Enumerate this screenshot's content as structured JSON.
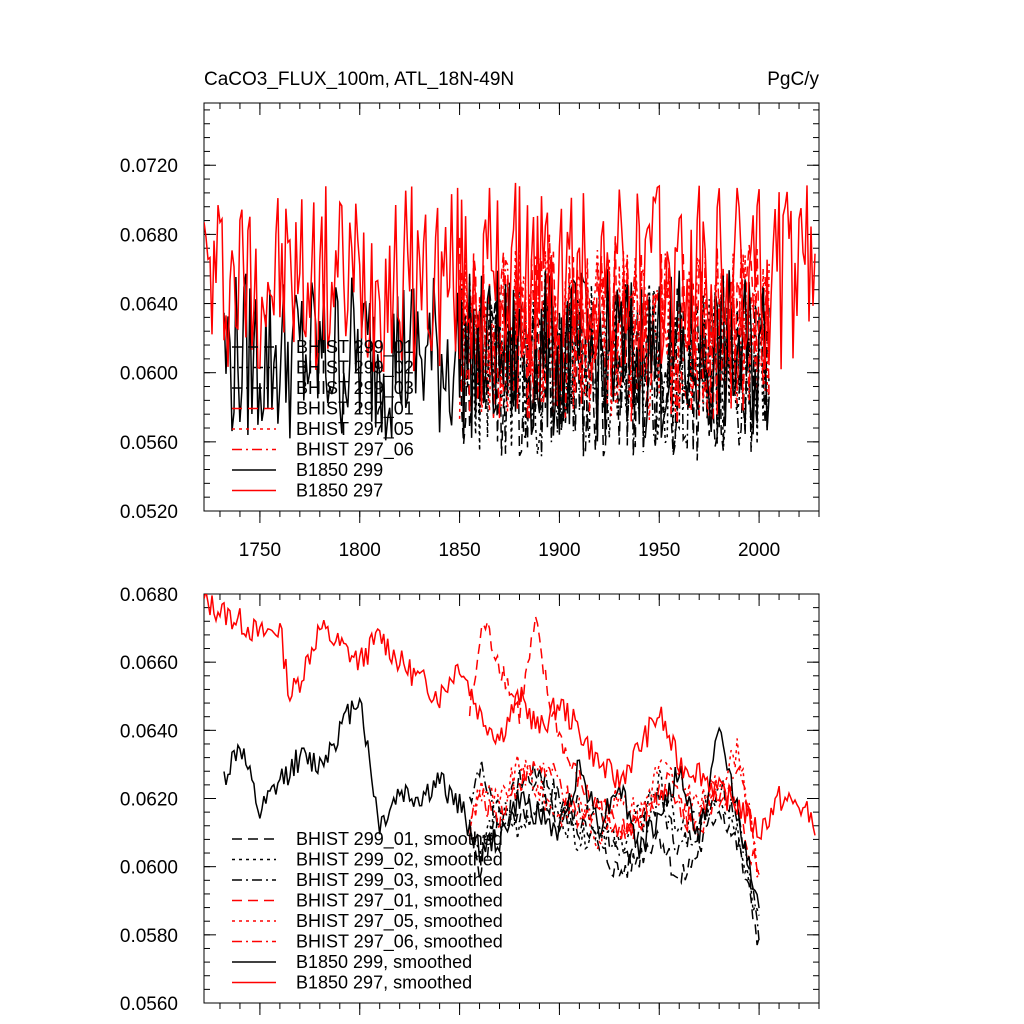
{
  "figure": {
    "title": "CaCO3_FLUX_100m, ATL_18N-49N",
    "units": "PgC/y"
  },
  "colors": {
    "black": "#000000",
    "red": "#ff0000"
  },
  "chart_data": [
    {
      "type": "line",
      "panel": "top",
      "title": "CaCO3_FLUX_100m, ATL_18N-49N",
      "units_label": "PgC/y",
      "xlim": [
        1722,
        2030
      ],
      "ylim": [
        0.052,
        0.0756
      ],
      "yticks": [
        0.052,
        0.056,
        0.06,
        0.064,
        0.068,
        0.072
      ],
      "ytick_labels": [
        "0.0520",
        "0.0560",
        "0.0600",
        "0.0640",
        "0.0680",
        "0.0720"
      ],
      "xticks": [
        1750,
        1800,
        1850,
        1900,
        1950,
        2000
      ],
      "xtick_labels": [
        "1750",
        "1800",
        "1850",
        "1900",
        "1950",
        "2000"
      ],
      "legend_position": "lower-left",
      "series": [
        {
          "name": "BHIST 299_01",
          "color": "#000000",
          "dash": "long-dash",
          "x_start": 1850,
          "x_end": 2005,
          "base": 0.06,
          "amp": 0.0052,
          "seed": 11
        },
        {
          "name": "BHIST 299_02",
          "color": "#000000",
          "dash": "dot",
          "x_start": 1850,
          "x_end": 2005,
          "base": 0.0602,
          "amp": 0.005,
          "seed": 23
        },
        {
          "name": "BHIST 299_03",
          "color": "#000000",
          "dash": "dash-dot",
          "x_start": 1850,
          "x_end": 2005,
          "base": 0.0601,
          "amp": 0.005,
          "seed": 37
        },
        {
          "name": "BHIST 297_01",
          "color": "#ff0000",
          "dash": "long-dash",
          "x_start": 1850,
          "x_end": 2005,
          "base": 0.0625,
          "amp": 0.0055,
          "seed": 41
        },
        {
          "name": "BHIST 297_05",
          "color": "#ff0000",
          "dash": "dot",
          "x_start": 1850,
          "x_end": 2005,
          "base": 0.0622,
          "amp": 0.005,
          "seed": 53
        },
        {
          "name": "BHIST 297_06",
          "color": "#ff0000",
          "dash": "dash-dot",
          "x_start": 1850,
          "x_end": 2005,
          "base": 0.0623,
          "amp": 0.005,
          "seed": 67
        },
        {
          "name": "B1850 299",
          "color": "#000000",
          "dash": "solid",
          "x_start": 1732,
          "x_end": 2005,
          "base": 0.061,
          "amp": 0.005,
          "seed": 79
        },
        {
          "name": "B1850 297",
          "color": "#ff0000",
          "dash": "solid",
          "x_start": 1722,
          "x_end": 2028,
          "base": 0.0655,
          "amp": 0.0055,
          "seed": 97
        }
      ]
    },
    {
      "type": "line",
      "panel": "bottom",
      "xlim": [
        1722,
        2030
      ],
      "ylim": [
        0.056,
        0.068
      ],
      "yticks": [
        0.056,
        0.058,
        0.06,
        0.062,
        0.064,
        0.066,
        0.068
      ],
      "ytick_labels": [
        "0.0560",
        "0.0580",
        "0.0600",
        "0.0620",
        "0.0640",
        "0.0660",
        "0.0680"
      ],
      "xticks": [
        1750,
        1800,
        1850,
        1900,
        1950,
        2000
      ],
      "legend_position": "lower-left",
      "series": [
        {
          "name": "BHIST 299_01, smoothed",
          "color": "#000000",
          "dash": "long-dash",
          "x": [
            1855,
            1860,
            1870,
            1880,
            1890,
            1900,
            1910,
            1920,
            1930,
            1940,
            1950,
            1960,
            1970,
            1980,
            1990,
            2000
          ],
          "y": [
            0.061,
            0.06,
            0.0615,
            0.0612,
            0.0625,
            0.0612,
            0.0618,
            0.0605,
            0.0598,
            0.0603,
            0.061,
            0.0595,
            0.0605,
            0.0618,
            0.0605,
            0.0578
          ],
          "jitter": 0.0004,
          "seed": 5
        },
        {
          "name": "BHIST 299_02, smoothed",
          "color": "#000000",
          "dash": "dot",
          "x": [
            1855,
            1860,
            1870,
            1880,
            1890,
            1900,
            1910,
            1920,
            1930,
            1940,
            1950,
            1960,
            1970,
            1980,
            1990,
            2000
          ],
          "y": [
            0.0612,
            0.0605,
            0.0618,
            0.061,
            0.062,
            0.0615,
            0.0608,
            0.0612,
            0.0606,
            0.0615,
            0.0625,
            0.061,
            0.0615,
            0.0622,
            0.061,
            0.0582
          ],
          "jitter": 0.0004,
          "seed": 6
        },
        {
          "name": "BHIST 299_03, smoothed",
          "color": "#000000",
          "dash": "dash-dot",
          "x": [
            1855,
            1860,
            1870,
            1880,
            1890,
            1900,
            1910,
            1920,
            1930,
            1940,
            1950,
            1960,
            1970,
            1980,
            1990,
            2000
          ],
          "y": [
            0.062,
            0.063,
            0.0612,
            0.0625,
            0.0628,
            0.062,
            0.0612,
            0.0618,
            0.06,
            0.061,
            0.062,
            0.0605,
            0.0612,
            0.0625,
            0.0615,
            0.058
          ],
          "jitter": 0.0004,
          "seed": 7
        },
        {
          "name": "BHIST 297_01, smoothed",
          "color": "#ff0000",
          "dash": "long-dash",
          "x": [
            1855,
            1862,
            1870,
            1880,
            1888,
            1895,
            1905,
            1915,
            1925,
            1935,
            1945,
            1955,
            1965,
            1975,
            1985,
            1995,
            2000
          ],
          "y": [
            0.0645,
            0.0672,
            0.066,
            0.0645,
            0.0671,
            0.0648,
            0.063,
            0.062,
            0.0615,
            0.061,
            0.0615,
            0.0625,
            0.0612,
            0.0618,
            0.0622,
            0.0605,
            0.0598
          ],
          "jitter": 0.0004,
          "seed": 8
        },
        {
          "name": "BHIST 297_05, smoothed",
          "color": "#ff0000",
          "dash": "dot",
          "x": [
            1855,
            1860,
            1870,
            1880,
            1890,
            1900,
            1910,
            1920,
            1930,
            1940,
            1950,
            1960,
            1970,
            1980,
            1990,
            2000
          ],
          "y": [
            0.061,
            0.0625,
            0.0618,
            0.063,
            0.0622,
            0.0615,
            0.0618,
            0.0608,
            0.0622,
            0.0615,
            0.063,
            0.0625,
            0.0618,
            0.0625,
            0.0635,
            0.0595
          ],
          "jitter": 0.0004,
          "seed": 9
        },
        {
          "name": "BHIST 297_06, smoothed",
          "color": "#ff0000",
          "dash": "dash-dot",
          "x": [
            1855,
            1860,
            1870,
            1880,
            1890,
            1900,
            1910,
            1920,
            1930,
            1940,
            1950,
            1960,
            1970,
            1980,
            1990,
            2000
          ],
          "y": [
            0.0612,
            0.062,
            0.0615,
            0.0625,
            0.063,
            0.0625,
            0.0612,
            0.062,
            0.061,
            0.0615,
            0.0622,
            0.0618,
            0.0612,
            0.0622,
            0.063,
            0.06
          ],
          "jitter": 0.0004,
          "seed": 10
        },
        {
          "name": "B1850 299, smoothed",
          "color": "#000000",
          "dash": "solid",
          "x": [
            1732,
            1740,
            1750,
            1760,
            1770,
            1780,
            1790,
            1800,
            1805,
            1810,
            1820,
            1830,
            1840,
            1850,
            1860,
            1870,
            1880,
            1890,
            1900,
            1910,
            1920,
            1930,
            1940,
            1950,
            1960,
            1970,
            1980,
            1990,
            2000
          ],
          "y": [
            0.0626,
            0.0636,
            0.0615,
            0.0625,
            0.0632,
            0.063,
            0.064,
            0.0651,
            0.063,
            0.0612,
            0.0622,
            0.062,
            0.0625,
            0.0618,
            0.0605,
            0.0608,
            0.062,
            0.0615,
            0.061,
            0.063,
            0.0612,
            0.0625,
            0.0605,
            0.0615,
            0.0628,
            0.0608,
            0.064,
            0.0615,
            0.0585
          ],
          "jitter": 0.0004,
          "seed": 12
        },
        {
          "name": "B1850 297, smoothed",
          "color": "#ff0000",
          "dash": "solid",
          "x": [
            1722,
            1730,
            1740,
            1750,
            1760,
            1765,
            1770,
            1780,
            1790,
            1800,
            1810,
            1820,
            1830,
            1840,
            1850,
            1860,
            1870,
            1880,
            1890,
            1900,
            1910,
            1920,
            1930,
            1940,
            1950,
            1960,
            1970,
            1980,
            1990,
            2000,
            2010,
            2020,
            2028
          ],
          "y": [
            0.0678,
            0.0675,
            0.0672,
            0.0668,
            0.067,
            0.065,
            0.0655,
            0.067,
            0.0665,
            0.066,
            0.0668,
            0.066,
            0.0655,
            0.065,
            0.066,
            0.0645,
            0.0638,
            0.065,
            0.064,
            0.0648,
            0.064,
            0.063,
            0.0625,
            0.0635,
            0.0645,
            0.063,
            0.0628,
            0.0622,
            0.0618,
            0.061,
            0.062,
            0.0618,
            0.0613
          ],
          "jitter": 0.0004,
          "seed": 13
        }
      ]
    }
  ]
}
